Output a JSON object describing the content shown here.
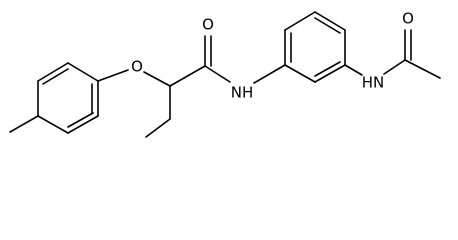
{
  "atoms": {
    "ether_oxygen": "O",
    "amide_oxygen": "O",
    "amide_nh": "NH",
    "acetamide_nh": "HN",
    "acetyl_oxygen": "O"
  }
}
